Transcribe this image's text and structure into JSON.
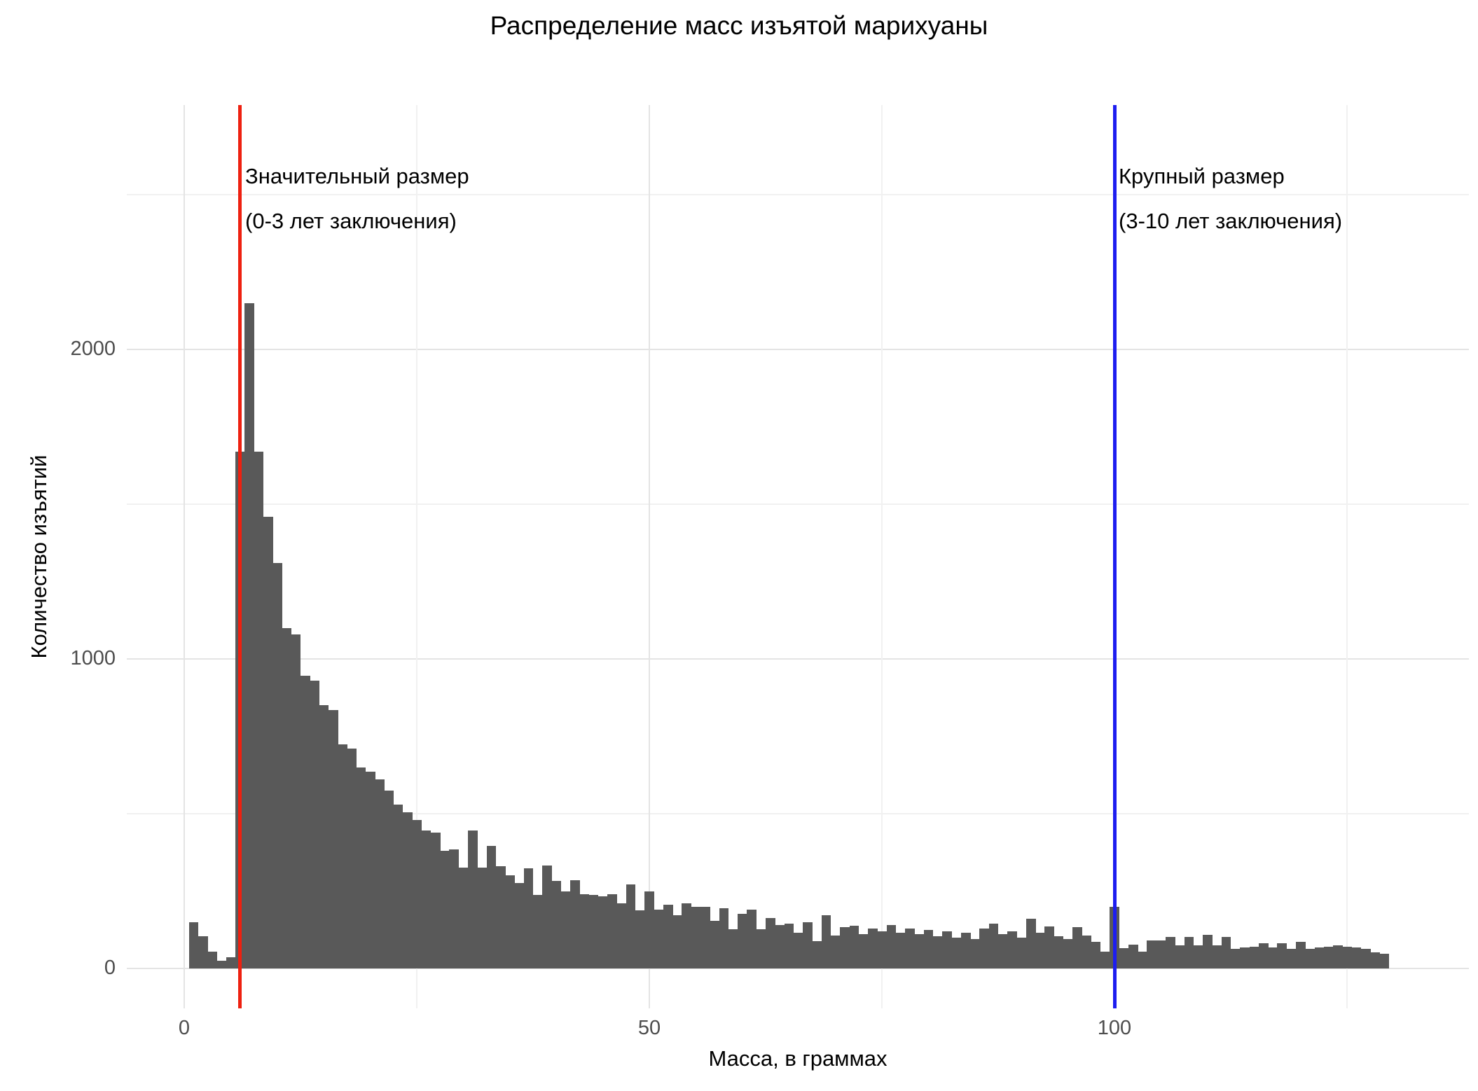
{
  "title": "Распределение масс изъятой марихуаны",
  "axes": {
    "x_label": "Масса, в граммах",
    "y_label": "Количество изъятий",
    "x_ticks": [
      "0",
      "50",
      "100"
    ],
    "x_tick_values": [
      0,
      50,
      100
    ],
    "y_ticks": [
      "0",
      "1000",
      "2000"
    ],
    "y_tick_values": [
      0,
      1000,
      2000
    ]
  },
  "annotations": [
    {
      "line1": "Значительный размер",
      "line2": "(0-3 лет заключения)",
      "x": 6
    },
    {
      "line1": "Крупный размер",
      "line2": "(3-10 лет заключения)",
      "x": 100
    }
  ],
  "colors": {
    "bar": "#595959",
    "grid_major": "#e4e4e4",
    "grid_minor": "#f1f1f1",
    "vline_significant": "#ee2010",
    "vline_large": "#1d1df0",
    "title_text": "#000000",
    "tick_text": "#4d4d4d",
    "background": "#ffffff"
  },
  "chart_data": {
    "type": "bar",
    "subtype": "histogram",
    "title": "Распределение масс изъятой марихуаны",
    "xlabel": "Масса, в граммах",
    "ylabel": "Количество изъятий",
    "legend_position": "none",
    "grid": true,
    "bin_width": 1,
    "xlim": [
      -6.2,
      138.1
    ],
    "ylim": [
      0,
      2790
    ],
    "x_major_gridlines": [
      0,
      50,
      100
    ],
    "x_minor_gridlines": [
      25,
      75,
      125
    ],
    "y_major_gridlines": [
      0,
      1000,
      2000
    ],
    "y_minor_gridlines": [
      500,
      1500,
      2500
    ],
    "x": [
      1,
      2,
      3,
      4,
      5,
      6,
      7,
      8,
      9,
      10,
      11,
      12,
      13,
      14,
      15,
      16,
      17,
      18,
      19,
      20,
      21,
      22,
      23,
      24,
      25,
      26,
      27,
      28,
      29,
      30,
      31,
      32,
      33,
      34,
      35,
      36,
      37,
      38,
      39,
      40,
      41,
      42,
      43,
      44,
      45,
      46,
      47,
      48,
      49,
      50,
      51,
      52,
      53,
      54,
      55,
      56,
      57,
      58,
      59,
      60,
      61,
      62,
      63,
      64,
      65,
      66,
      67,
      68,
      69,
      70,
      71,
      72,
      73,
      74,
      75,
      76,
      77,
      78,
      79,
      80,
      81,
      82,
      83,
      84,
      85,
      86,
      87,
      88,
      89,
      90,
      91,
      92,
      93,
      94,
      95,
      96,
      97,
      98,
      99,
      100,
      101,
      102,
      103,
      104,
      105,
      106,
      107,
      108,
      109,
      110,
      111,
      112,
      113,
      114,
      115,
      116,
      117,
      118,
      119,
      120,
      121,
      122,
      123,
      124,
      125,
      126,
      127,
      128,
      129
    ],
    "values": [
      150,
      105,
      55,
      25,
      37,
      1670,
      2150,
      1670,
      1460,
      1310,
      1100,
      1080,
      945,
      930,
      850,
      835,
      725,
      710,
      650,
      635,
      610,
      575,
      530,
      505,
      480,
      445,
      440,
      380,
      385,
      325,
      445,
      325,
      395,
      330,
      302,
      275,
      324,
      237,
      332,
      282,
      248,
      286,
      240,
      237,
      233,
      240,
      210,
      271,
      187,
      250,
      191,
      206,
      172,
      210,
      198,
      198,
      153,
      195,
      126,
      176,
      191,
      126,
      164,
      141,
      145,
      115,
      149,
      88,
      172,
      107,
      134,
      137,
      110,
      130,
      120,
      140,
      115,
      130,
      110,
      125,
      105,
      120,
      100,
      115,
      95,
      130,
      145,
      110,
      120,
      100,
      160,
      115,
      135,
      105,
      95,
      133,
      106,
      85,
      55,
      200,
      65,
      76,
      55,
      90,
      90,
      102,
      75,
      102,
      75,
      109,
      75,
      102,
      63,
      67,
      71,
      82,
      67,
      82,
      63,
      86,
      63,
      67,
      71,
      75,
      71,
      67,
      63,
      52,
      48
    ],
    "vlines": [
      {
        "x": 6,
        "color": "#ee2010",
        "label": "Значительный размер (0-3 лет заключения)"
      },
      {
        "x": 100,
        "color": "#1d1df0",
        "label": "Крупный размер (3-10 лет заключения)"
      }
    ]
  }
}
